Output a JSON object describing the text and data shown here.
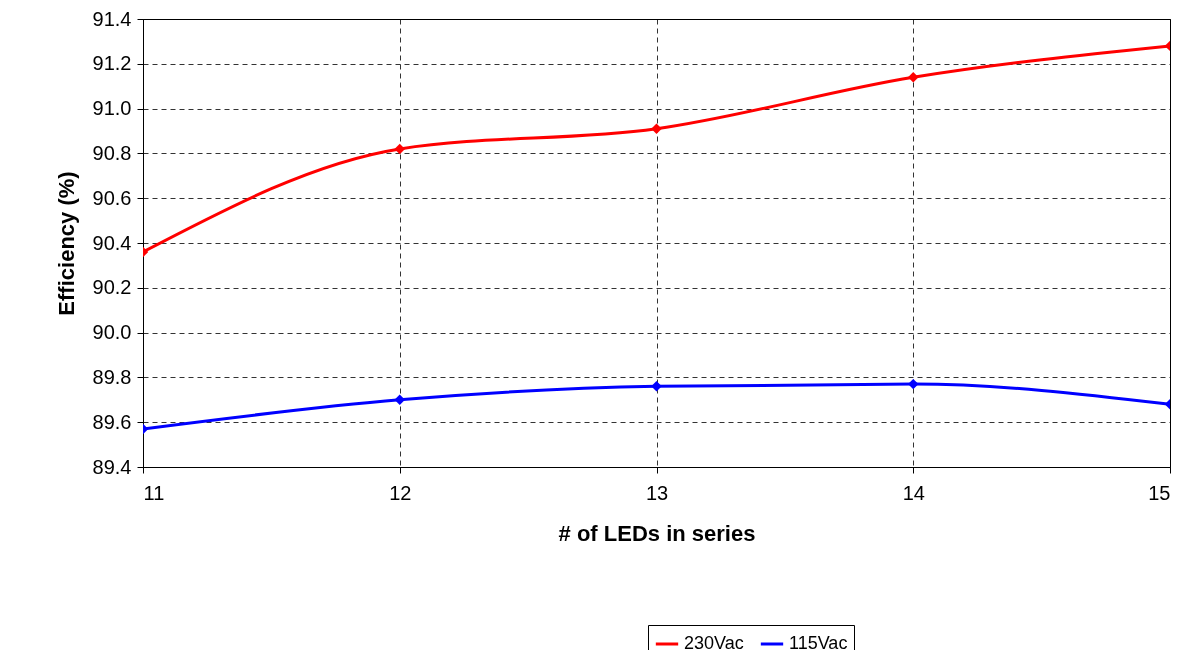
{
  "chart_data": {
    "type": "line",
    "xlabel": "# of LEDs in series",
    "ylabel": "Efficiency (%)",
    "x": [
      11,
      12,
      13,
      14,
      15
    ],
    "series": [
      {
        "name": "230Vac",
        "color": "#ff0000",
        "values": [
          90.36,
          90.82,
          90.91,
          91.14,
          91.28
        ]
      },
      {
        "name": "115Vac",
        "color": "#0000ff",
        "values": [
          89.57,
          89.7,
          89.76,
          89.77,
          89.68
        ]
      }
    ],
    "xlim": [
      11,
      15
    ],
    "xticks": [
      11,
      12,
      13,
      14,
      15
    ],
    "ylim": [
      89.4,
      91.4
    ],
    "yticks": [
      {
        "value": 89.4,
        "label": "89.4"
      },
      {
        "value": 89.6,
        "label": "89.6"
      },
      {
        "value": 89.8,
        "label": "89.8"
      },
      {
        "value": 90,
        "label": "90.0"
      },
      {
        "value": 90.2,
        "label": "90.2"
      },
      {
        "value": 90.4,
        "label": "90.4"
      },
      {
        "value": 90.6,
        "label": "90.6"
      },
      {
        "value": 90.8,
        "label": "90.8"
      },
      {
        "value": 91,
        "label": "91.0"
      },
      {
        "value": 91.2,
        "label": "91.2"
      },
      {
        "value": 91.4,
        "label": "91.4"
      }
    ],
    "grid": true,
    "legend": "bottom",
    "marker": "diamond",
    "line_style": "solid"
  }
}
